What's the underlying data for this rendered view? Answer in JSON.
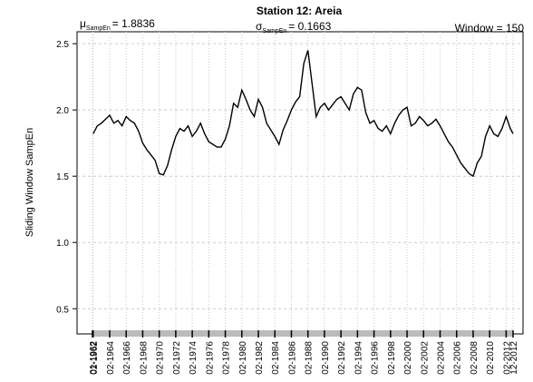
{
  "chart_data": {
    "type": "line",
    "title": "Station 12: Areia",
    "y_label": "Sliding Window SampEn",
    "annotations": [
      {
        "symbol": "μ",
        "subscript": "SampEn",
        "text": "= 1.8836"
      },
      {
        "symbol": "σ",
        "subscript": "SampEn",
        "text": "= 0.1663"
      },
      {
        "text": "Window = 150"
      }
    ],
    "x": [
      "02-1962",
      "08-1962",
      "02-1963",
      "08-1963",
      "02-1964",
      "08-1964",
      "02-1965",
      "08-1965",
      "02-1966",
      "08-1966",
      "02-1967",
      "08-1967",
      "02-1968",
      "08-1968",
      "02-1969",
      "08-1969",
      "02-1970",
      "08-1970",
      "02-1971",
      "08-1971",
      "02-1972",
      "08-1972",
      "02-1973",
      "08-1973",
      "02-1974",
      "08-1974",
      "02-1975",
      "08-1975",
      "02-1976",
      "08-1976",
      "02-1977",
      "08-1977",
      "02-1978",
      "08-1978",
      "02-1979",
      "08-1979",
      "02-1980",
      "08-1980",
      "02-1981",
      "08-1981",
      "02-1982",
      "08-1982",
      "02-1983",
      "08-1983",
      "02-1984",
      "08-1984",
      "02-1985",
      "08-1985",
      "02-1986",
      "08-1986",
      "02-1987",
      "08-1987",
      "02-1988",
      "08-1988",
      "02-1989",
      "08-1989",
      "02-1990",
      "08-1990",
      "02-1991",
      "08-1991",
      "02-1992",
      "08-1992",
      "02-1993",
      "08-1993",
      "02-1994",
      "08-1994",
      "02-1995",
      "08-1995",
      "02-1996",
      "08-1996",
      "02-1997",
      "08-1997",
      "02-1998",
      "08-1998",
      "02-1999",
      "08-1999",
      "02-2000",
      "08-2000",
      "02-2001",
      "08-2001",
      "02-2002",
      "08-2002",
      "02-2003",
      "08-2003",
      "02-2004",
      "08-2004",
      "02-2005",
      "08-2005",
      "02-2006",
      "08-2006",
      "02-2007",
      "08-2007",
      "02-2008",
      "08-2008",
      "02-2009",
      "08-2009",
      "02-2010",
      "08-2010",
      "02-2011",
      "08-2011",
      "02-2012",
      "08-2012",
      "12-2012"
    ],
    "series": [
      {
        "name": "SampEn",
        "color": "#000000",
        "values": [
          1.82,
          1.88,
          1.9,
          1.93,
          1.96,
          1.9,
          1.92,
          1.88,
          1.95,
          1.92,
          1.9,
          1.84,
          1.75,
          1.7,
          1.66,
          1.62,
          1.52,
          1.51,
          1.58,
          1.7,
          1.8,
          1.86,
          1.84,
          1.88,
          1.8,
          1.84,
          1.9,
          1.82,
          1.76,
          1.74,
          1.72,
          1.72,
          1.78,
          1.88,
          2.05,
          2.02,
          2.15,
          2.08,
          2.0,
          1.95,
          2.08,
          2.02,
          1.9,
          1.85,
          1.8,
          1.74,
          1.85,
          1.92,
          2.0,
          2.06,
          2.1,
          2.35,
          2.45,
          2.2,
          1.95,
          2.02,
          2.05,
          2.0,
          2.04,
          2.08,
          2.1,
          2.05,
          2.0,
          2.12,
          2.17,
          2.15,
          1.98,
          1.9,
          1.92,
          1.86,
          1.84,
          1.88,
          1.82,
          1.9,
          1.96,
          2.0,
          2.02,
          1.88,
          1.9,
          1.95,
          1.92,
          1.88,
          1.9,
          1.93,
          1.88,
          1.82,
          1.76,
          1.72,
          1.66,
          1.6,
          1.56,
          1.52,
          1.5,
          1.6,
          1.65,
          1.8,
          1.88,
          1.82,
          1.8,
          1.86,
          1.95,
          1.86,
          1.82
        ]
      }
    ],
    "xlim": [
      "01-1962",
      "12-2012"
    ],
    "xticks": [
      "01-1962",
      "02-1962",
      "02-1964",
      "02-1966",
      "02-1968",
      "02-1970",
      "02-1972",
      "02-1974",
      "02-1976",
      "02-1978",
      "02-1980",
      "02-1982",
      "02-1984",
      "02-1986",
      "02-1988",
      "02-1990",
      "02-1992",
      "02-1994",
      "02-1996",
      "02-1998",
      "02-2000",
      "02-2002",
      "02-2004",
      "02-2006",
      "02-2008",
      "02-2010",
      "02-2012",
      "12-2012"
    ],
    "ylim": [
      0.31,
      2.59
    ],
    "yticks": [
      0.5,
      {
        "value": 1.0,
        "label": "1.0"
      },
      1.5,
      {
        "value": 2.0,
        "label": "2.0"
      },
      2.5
    ],
    "grid": true
  }
}
